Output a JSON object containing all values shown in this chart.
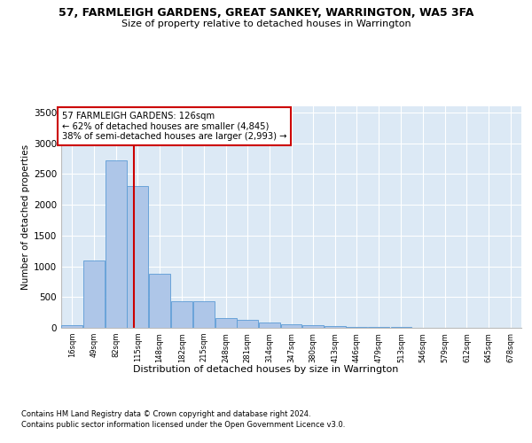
{
  "title": "57, FARMLEIGH GARDENS, GREAT SANKEY, WARRINGTON, WA5 3FA",
  "subtitle": "Size of property relative to detached houses in Warrington",
  "xlabel": "Distribution of detached houses by size in Warrington",
  "ylabel": "Number of detached properties",
  "footnote1": "Contains HM Land Registry data © Crown copyright and database right 2024.",
  "footnote2": "Contains public sector information licensed under the Open Government Licence v3.0.",
  "property_size": 126,
  "annotation_text": "57 FARMLEIGH GARDENS: 126sqm\n← 62% of detached houses are smaller (4,845)\n38% of semi-detached houses are larger (2,993) →",
  "bar_edges": [
    16,
    49,
    82,
    115,
    148,
    182,
    215,
    248,
    281,
    314,
    347,
    380,
    413,
    446,
    479,
    513,
    546,
    579,
    612,
    645,
    678
  ],
  "bar_heights": [
    50,
    1100,
    2720,
    2300,
    880,
    430,
    430,
    165,
    135,
    90,
    55,
    50,
    35,
    20,
    15,
    10,
    5,
    5,
    3,
    2,
    1
  ],
  "bar_color": "#aec6e8",
  "bar_edge_color": "#5b9bd5",
  "red_line_color": "#cc0000",
  "background_color": "#dce9f5",
  "annotation_box_color": "#ffffff",
  "annotation_box_edge": "#cc0000",
  "ylim": [
    0,
    3600
  ],
  "yticks": [
    0,
    500,
    1000,
    1500,
    2000,
    2500,
    3000,
    3500
  ]
}
